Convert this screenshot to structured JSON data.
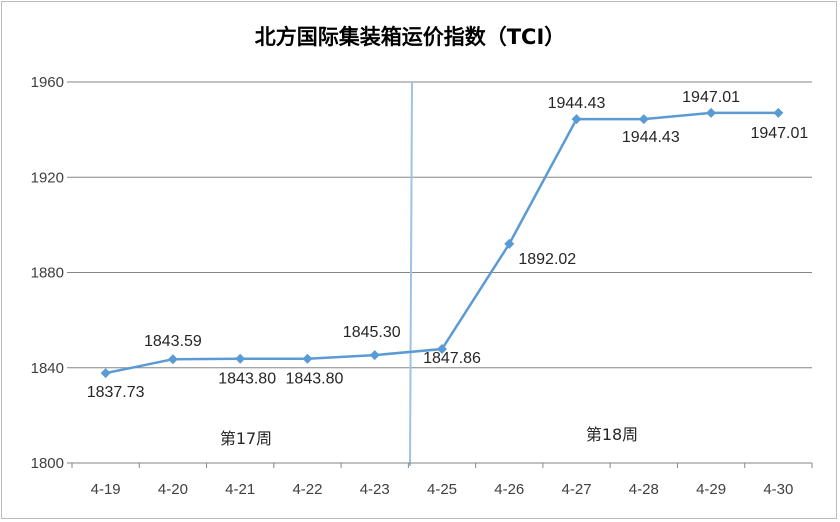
{
  "chart_data": {
    "type": "line",
    "title": "北方国际集装箱运价指数（TCI）",
    "categories": [
      "4-19",
      "4-20",
      "4-21",
      "4-22",
      "4-23",
      "4-25",
      "4-26",
      "4-27",
      "4-28",
      "4-29",
      "4-30"
    ],
    "series": [
      {
        "values": [
          1837.73,
          1843.59,
          1843.8,
          1843.8,
          1845.3,
          1847.86,
          1892.02,
          1944.43,
          1944.43,
          1947.01,
          1947.01
        ],
        "labels": [
          "1837.73",
          "1843.59",
          "1843.80",
          "1843.80",
          "1845.30",
          "1847.86",
          "1892.02",
          "1944.43",
          "1944.43",
          "1947.01",
          "1947.01"
        ],
        "color": "#5b9bd5"
      }
    ],
    "ylim": [
      1800,
      1960
    ],
    "yticks": [
      "1800",
      "1840",
      "1880",
      "1920",
      "1960"
    ],
    "grid": true,
    "annotations": [
      {
        "text": "第17周"
      },
      {
        "text": "第18周"
      }
    ],
    "divider_color": "#9dc3e6"
  }
}
